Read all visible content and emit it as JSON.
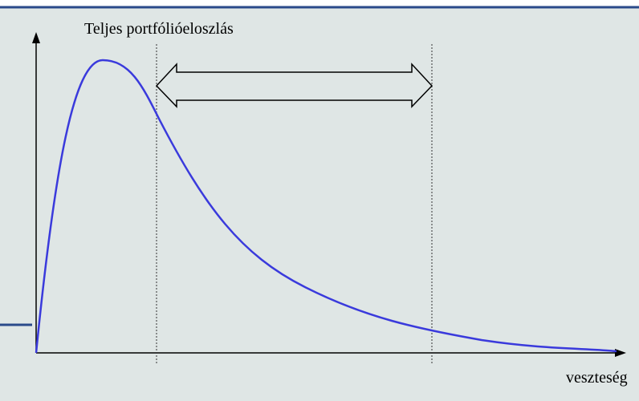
{
  "title": "Teljes portfólióeloszlás",
  "x_axis_label": "veszteség"
}
